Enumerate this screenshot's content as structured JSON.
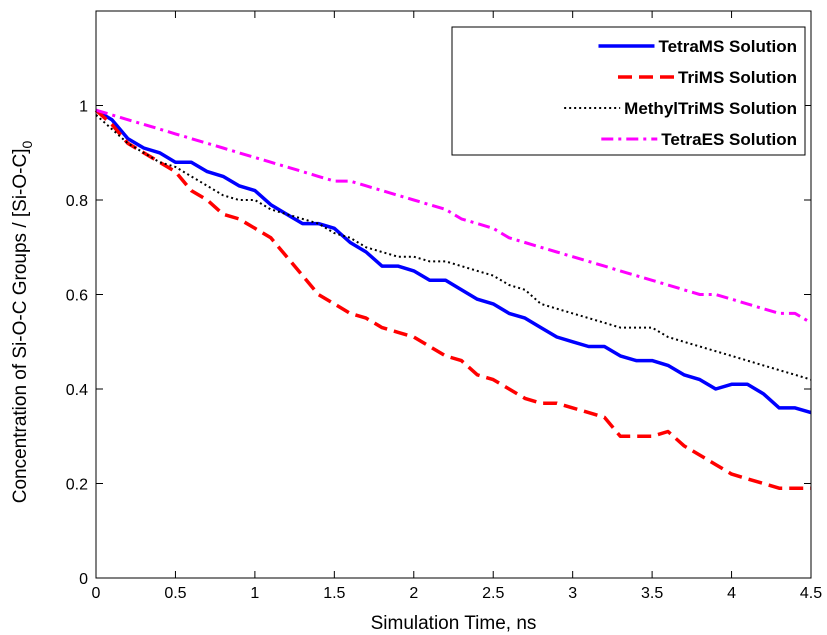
{
  "chart_data": {
    "type": "line",
    "xlabel": "Simulation Time, ns",
    "ylabel": "Concentration of Si-O-C Groups / [Si-O-C]",
    "ylabel_subscript": "0",
    "xlim": [
      0,
      4.5
    ],
    "ylim": [
      0,
      1.2
    ],
    "x_ticks": [
      "0",
      "0.5",
      "1",
      "1.5",
      "2",
      "2.5",
      "3",
      "3.5",
      "4",
      "4.5"
    ],
    "y_ticks": [
      "0",
      "0.2",
      "0.4",
      "0.6",
      "0.8",
      "1"
    ],
    "grid": false,
    "legend_position": "top-right",
    "series": [
      {
        "name": "TetraMS Solution",
        "color": "#0000ff",
        "style": "solid",
        "x": [
          0,
          0.1,
          0.2,
          0.3,
          0.4,
          0.5,
          0.6,
          0.7,
          0.8,
          0.9,
          1.0,
          1.1,
          1.2,
          1.3,
          1.4,
          1.5,
          1.6,
          1.7,
          1.8,
          1.9,
          2.0,
          2.1,
          2.2,
          2.3,
          2.4,
          2.5,
          2.6,
          2.7,
          2.8,
          2.9,
          3.0,
          3.1,
          3.2,
          3.3,
          3.4,
          3.5,
          3.6,
          3.7,
          3.8,
          3.9,
          4.0,
          4.1,
          4.2,
          4.3,
          4.4,
          4.5
        ],
        "y": [
          0.99,
          0.97,
          0.93,
          0.91,
          0.9,
          0.88,
          0.88,
          0.86,
          0.85,
          0.83,
          0.82,
          0.79,
          0.77,
          0.75,
          0.75,
          0.74,
          0.71,
          0.69,
          0.66,
          0.66,
          0.65,
          0.63,
          0.63,
          0.61,
          0.59,
          0.58,
          0.56,
          0.55,
          0.53,
          0.51,
          0.5,
          0.49,
          0.49,
          0.47,
          0.46,
          0.46,
          0.45,
          0.43,
          0.42,
          0.4,
          0.41,
          0.41,
          0.39,
          0.36,
          0.36,
          0.35
        ]
      },
      {
        "name": "TriMS Solution",
        "color": "#ff0000",
        "style": "dashed",
        "x": [
          0,
          0.1,
          0.2,
          0.3,
          0.4,
          0.5,
          0.6,
          0.7,
          0.8,
          0.9,
          1.0,
          1.1,
          1.2,
          1.3,
          1.4,
          1.5,
          1.6,
          1.7,
          1.8,
          1.9,
          2.0,
          2.1,
          2.2,
          2.3,
          2.4,
          2.5,
          2.6,
          2.7,
          2.8,
          2.9,
          3.0,
          3.1,
          3.2,
          3.3,
          3.4,
          3.5,
          3.6,
          3.7,
          3.8,
          3.9,
          4.0,
          4.1,
          4.2,
          4.3,
          4.4,
          4.5
        ],
        "y": [
          0.99,
          0.96,
          0.92,
          0.9,
          0.88,
          0.86,
          0.82,
          0.8,
          0.77,
          0.76,
          0.74,
          0.72,
          0.68,
          0.64,
          0.6,
          0.58,
          0.56,
          0.55,
          0.53,
          0.52,
          0.51,
          0.49,
          0.47,
          0.46,
          0.43,
          0.42,
          0.4,
          0.38,
          0.37,
          0.37,
          0.36,
          0.35,
          0.34,
          0.3,
          0.3,
          0.3,
          0.31,
          0.28,
          0.26,
          0.24,
          0.22,
          0.21,
          0.2,
          0.19,
          0.19,
          0.19
        ]
      },
      {
        "name": "MethylTriMS Solution",
        "color": "#000000",
        "style": "dotted",
        "x": [
          0,
          0.1,
          0.2,
          0.3,
          0.4,
          0.5,
          0.6,
          0.7,
          0.8,
          0.9,
          1.0,
          1.1,
          1.2,
          1.3,
          1.4,
          1.5,
          1.6,
          1.7,
          1.8,
          1.9,
          2.0,
          2.1,
          2.2,
          2.3,
          2.4,
          2.5,
          2.6,
          2.7,
          2.8,
          2.9,
          3.0,
          3.1,
          3.2,
          3.3,
          3.4,
          3.5,
          3.6,
          3.7,
          3.8,
          3.9,
          4.0,
          4.1,
          4.2,
          4.3,
          4.4,
          4.5
        ],
        "y": [
          0.98,
          0.95,
          0.92,
          0.9,
          0.88,
          0.87,
          0.85,
          0.83,
          0.81,
          0.8,
          0.8,
          0.78,
          0.77,
          0.76,
          0.75,
          0.73,
          0.72,
          0.7,
          0.69,
          0.68,
          0.68,
          0.67,
          0.67,
          0.66,
          0.65,
          0.64,
          0.62,
          0.61,
          0.58,
          0.57,
          0.56,
          0.55,
          0.54,
          0.53,
          0.53,
          0.53,
          0.51,
          0.5,
          0.49,
          0.48,
          0.47,
          0.46,
          0.45,
          0.44,
          0.43,
          0.42
        ]
      },
      {
        "name": "TetraES Solution",
        "color": "#ff00ff",
        "style": "dashdot",
        "x": [
          0,
          0.1,
          0.2,
          0.3,
          0.4,
          0.5,
          0.6,
          0.7,
          0.8,
          0.9,
          1.0,
          1.1,
          1.2,
          1.3,
          1.4,
          1.5,
          1.6,
          1.7,
          1.8,
          1.9,
          2.0,
          2.1,
          2.2,
          2.3,
          2.4,
          2.5,
          2.6,
          2.7,
          2.8,
          2.9,
          3.0,
          3.1,
          3.2,
          3.3,
          3.4,
          3.5,
          3.6,
          3.7,
          3.8,
          3.9,
          4.0,
          4.1,
          4.2,
          4.3,
          4.4,
          4.5
        ],
        "y": [
          0.99,
          0.98,
          0.97,
          0.96,
          0.95,
          0.94,
          0.93,
          0.92,
          0.91,
          0.9,
          0.89,
          0.88,
          0.87,
          0.86,
          0.85,
          0.84,
          0.84,
          0.83,
          0.82,
          0.81,
          0.8,
          0.79,
          0.78,
          0.76,
          0.75,
          0.74,
          0.72,
          0.71,
          0.7,
          0.69,
          0.68,
          0.67,
          0.66,
          0.65,
          0.64,
          0.63,
          0.62,
          0.61,
          0.6,
          0.6,
          0.59,
          0.58,
          0.57,
          0.56,
          0.56,
          0.54
        ]
      }
    ]
  }
}
